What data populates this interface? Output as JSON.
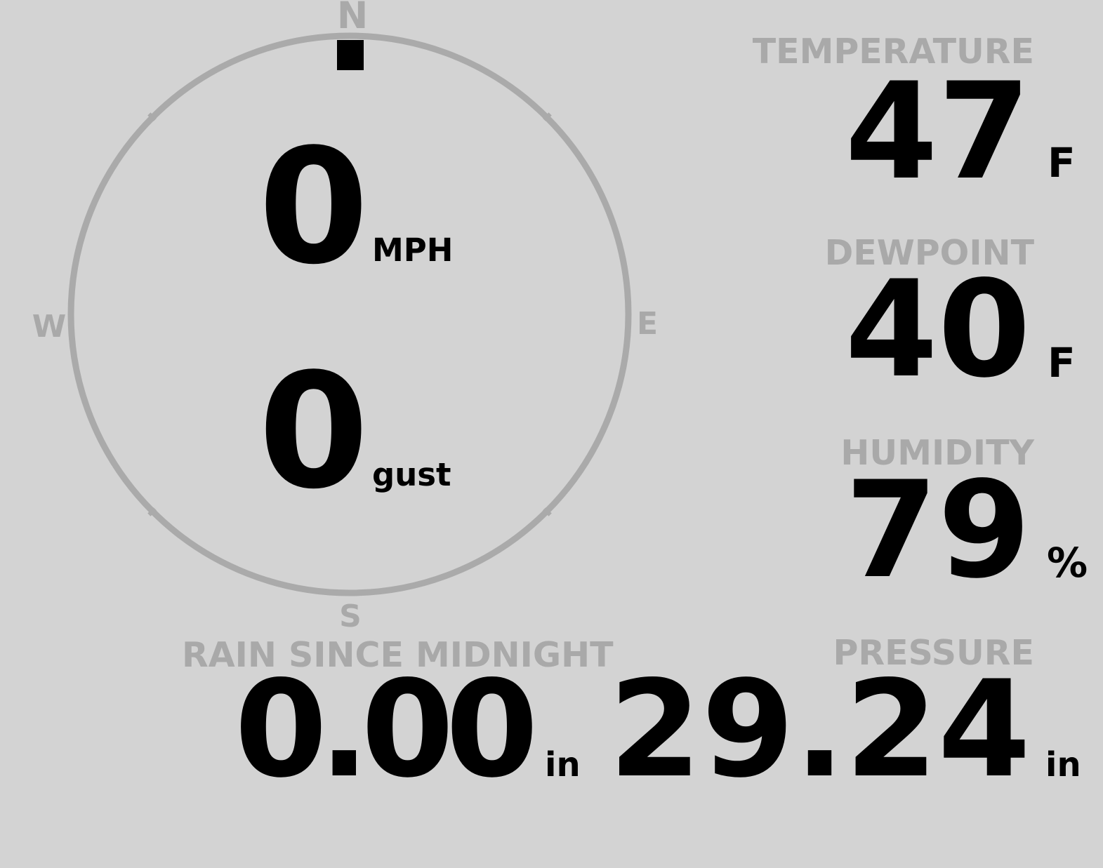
{
  "compass": {
    "north": "N",
    "east": "E",
    "south": "S",
    "west": "W",
    "wind_direction_deg": 0,
    "ring_color": "#aaaaaa",
    "marker_color": "#000000"
  },
  "wind": {
    "speed": "0",
    "speed_unit": "MPH",
    "gust": "0",
    "gust_unit": "gust"
  },
  "temperature": {
    "label": "TEMPERATURE",
    "value": "47",
    "unit": "F"
  },
  "dewpoint": {
    "label": "DEWPOINT",
    "value": "40",
    "unit": "F"
  },
  "humidity": {
    "label": "HUMIDITY",
    "value": "79",
    "unit": "%"
  },
  "pressure": {
    "label": "PRESSURE",
    "value": "29.24",
    "unit": "in"
  },
  "rain": {
    "label": "RAIN SINCE MIDNIGHT",
    "value": "0.00",
    "unit": "in"
  },
  "colors": {
    "background": "#d3d3d3",
    "label": "#a9a9a9",
    "value": "#000000"
  }
}
